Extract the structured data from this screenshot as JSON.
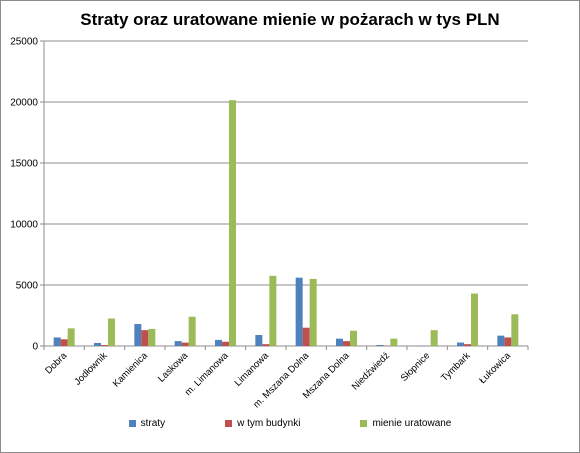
{
  "chart_data": {
    "type": "bar",
    "title": "Straty oraz uratowane mienie w pożarach w tys PLN",
    "xlabel": "",
    "ylabel": "",
    "ylim": [
      0,
      25000
    ],
    "yticks": [
      "0",
      "5000",
      "10000",
      "15000",
      "20000",
      "25000"
    ],
    "grid": true,
    "legend_position": "bottom",
    "categories": [
      "Dobra",
      "Jodłownik",
      "Kamienica",
      "Laskowa",
      "m. Limanowa",
      "Limanowa",
      "m. Mszana Dolna",
      "Mszana Dolna",
      "Niedźwiedź",
      "Słopnice",
      "Tymbark",
      "Łukowica"
    ],
    "series": [
      {
        "name": "straty",
        "color": "#4f81bd",
        "values": [
          700,
          250,
          1800,
          400,
          500,
          900,
          5600,
          600,
          80,
          30,
          280,
          850
        ]
      },
      {
        "name": "w tym budynki",
        "color": "#c0504d",
        "values": [
          550,
          80,
          1300,
          280,
          350,
          150,
          1500,
          400,
          30,
          10,
          150,
          700
        ]
      },
      {
        "name": "mienie uratowane",
        "color": "#9bbb59",
        "values": [
          1450,
          2250,
          1400,
          2400,
          20150,
          5750,
          5500,
          1250,
          600,
          1300,
          4300,
          2600
        ]
      }
    ]
  }
}
